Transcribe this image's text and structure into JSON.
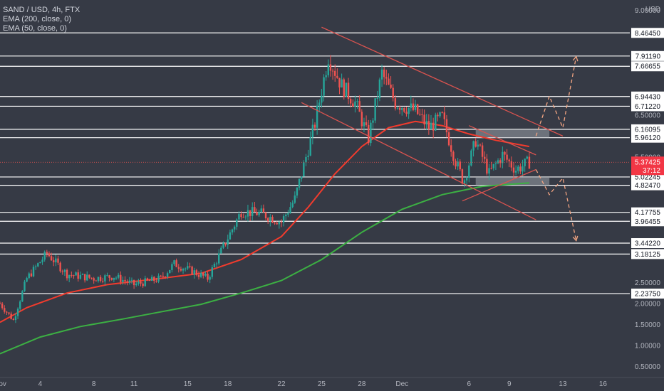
{
  "legend": {
    "symbol": "SAND / USD, 4h, FTX",
    "ema200": "EMA (200, close, 0)",
    "ema50": "EMA (50, close, 0)"
  },
  "currency_label": "USD",
  "colors": {
    "background": "#363a45",
    "up": "#26a69a",
    "down": "#ef5350",
    "ema50": "#f23b2d",
    "ema200": "#3cb043",
    "level": "#ffffff",
    "channel": "#d9534f",
    "projection": "#f4a582",
    "zone": "#9aa0a8"
  },
  "chart_data": {
    "type": "candlestick",
    "title": "SAND / USD, 4h, FTX",
    "ylim": [
      0.25,
      9.25
    ],
    "y_ticks": [
      "9.00000",
      "6.50000",
      "5.50000",
      "2.50000",
      "2.00000",
      "1.50000",
      "1.00000",
      "0.50000"
    ],
    "y_tick_values": [
      9.0,
      6.5,
      5.5,
      2.5,
      2.0,
      1.5,
      1.0,
      0.5
    ],
    "x_ticks": [
      "Nov",
      "4",
      "8",
      "11",
      "15",
      "18",
      "22",
      "25",
      "28",
      "Dec",
      "6",
      "9",
      "13",
      "16"
    ],
    "x_tick_days": [
      0,
      3,
      7,
      10,
      14,
      17,
      21,
      24,
      27,
      30,
      35,
      38,
      42,
      45
    ],
    "xlim_days": [
      0,
      47
    ],
    "levels": [
      "8.46450",
      "7.91190",
      "7.66655",
      "6.94430",
      "6.71220",
      "6.16095",
      "5.96120",
      "5.02245",
      "4.82470",
      "4.17755",
      "3.96455",
      "3.44220",
      "3.18125",
      "2.23750"
    ],
    "level_values": [
      8.4645,
      7.9119,
      7.66655,
      6.9443,
      6.7122,
      6.16095,
      5.9612,
      5.02245,
      4.8247,
      4.17755,
      3.96455,
      3.4422,
      3.18125,
      2.2375
    ],
    "current_price": {
      "value": 5.37425,
      "label": "5.37425",
      "countdown": "37:12"
    },
    "zones": [
      {
        "from_day": 35.5,
        "to_day": 41.0,
        "low": 5.9612,
        "high": 6.16095
      },
      {
        "from_day": 35.5,
        "to_day": 41.0,
        "low": 4.8247,
        "high": 5.02245
      }
    ],
    "price_keypoints": [
      {
        "day": 0,
        "price": 2.0
      },
      {
        "day": 1,
        "price": 1.6
      },
      {
        "day": 2,
        "price": 2.6
      },
      {
        "day": 3.5,
        "price": 3.2
      },
      {
        "day": 5,
        "price": 2.7
      },
      {
        "day": 7,
        "price": 2.6
      },
      {
        "day": 8.5,
        "price": 2.65
      },
      {
        "day": 10,
        "price": 2.45
      },
      {
        "day": 12,
        "price": 2.6
      },
      {
        "day": 13,
        "price": 2.95
      },
      {
        "day": 14.5,
        "price": 2.75
      },
      {
        "day": 15.5,
        "price": 2.6
      },
      {
        "day": 16.5,
        "price": 3.25
      },
      {
        "day": 18,
        "price": 4.2
      },
      {
        "day": 19.5,
        "price": 4.15
      },
      {
        "day": 21,
        "price": 3.95
      },
      {
        "day": 22,
        "price": 4.5
      },
      {
        "day": 23.5,
        "price": 6.3
      },
      {
        "day": 24.5,
        "price": 7.9
      },
      {
        "day": 25.5,
        "price": 7.2
      },
      {
        "day": 26.5,
        "price": 6.8
      },
      {
        "day": 27.5,
        "price": 5.95
      },
      {
        "day": 28.5,
        "price": 7.5
      },
      {
        "day": 29.5,
        "price": 6.8
      },
      {
        "day": 31,
        "price": 6.6
      },
      {
        "day": 32,
        "price": 6.2
      },
      {
        "day": 33,
        "price": 6.45
      },
      {
        "day": 34,
        "price": 5.4
      },
      {
        "day": 34.6,
        "price": 4.9
      },
      {
        "day": 35.5,
        "price": 5.9
      },
      {
        "day": 36.5,
        "price": 5.1
      },
      {
        "day": 37.5,
        "price": 5.55
      },
      {
        "day": 38.5,
        "price": 5.2
      },
      {
        "day": 39.5,
        "price": 5.38
      }
    ],
    "series": [
      {
        "name": "EMA (50, close, 0)",
        "points": [
          {
            "day": 0,
            "price": 1.55
          },
          {
            "day": 2,
            "price": 1.9
          },
          {
            "day": 5,
            "price": 2.25
          },
          {
            "day": 8,
            "price": 2.45
          },
          {
            "day": 12,
            "price": 2.6
          },
          {
            "day": 15,
            "price": 2.72
          },
          {
            "day": 18,
            "price": 3.05
          },
          {
            "day": 21,
            "price": 3.6
          },
          {
            "day": 23,
            "price": 4.3
          },
          {
            "day": 25,
            "price": 5.1
          },
          {
            "day": 27,
            "price": 5.75
          },
          {
            "day": 29,
            "price": 6.2
          },
          {
            "day": 31,
            "price": 6.35
          },
          {
            "day": 33,
            "price": 6.25
          },
          {
            "day": 35,
            "price": 6.05
          },
          {
            "day": 37,
            "price": 5.9
          },
          {
            "day": 39.5,
            "price": 5.75
          }
        ]
      },
      {
        "name": "EMA (200, close, 0)",
        "points": [
          {
            "day": 0,
            "price": 0.8
          },
          {
            "day": 3,
            "price": 1.2
          },
          {
            "day": 6,
            "price": 1.45
          },
          {
            "day": 9,
            "price": 1.62
          },
          {
            "day": 12,
            "price": 1.8
          },
          {
            "day": 15,
            "price": 1.98
          },
          {
            "day": 18,
            "price": 2.25
          },
          {
            "day": 21,
            "price": 2.55
          },
          {
            "day": 24,
            "price": 3.05
          },
          {
            "day": 27,
            "price": 3.7
          },
          {
            "day": 30,
            "price": 4.25
          },
          {
            "day": 33,
            "price": 4.6
          },
          {
            "day": 36,
            "price": 4.8
          },
          {
            "day": 39.5,
            "price": 4.88
          }
        ]
      }
    ],
    "trendlines": [
      {
        "from": {
          "day": 24,
          "price": 8.6
        },
        "to": {
          "day": 42,
          "price": 6.0
        }
      },
      {
        "from": {
          "day": 22.5,
          "price": 6.8
        },
        "to": {
          "day": 40,
          "price": 4.0
        }
      },
      {
        "from": {
          "day": 35,
          "price": 6.25
        },
        "to": {
          "day": 40,
          "price": 5.55
        }
      },
      {
        "from": {
          "day": 34.5,
          "price": 4.45
        },
        "to": {
          "day": 40,
          "price": 5.2
        }
      }
    ],
    "projections": [
      [
        {
          "day": 40,
          "price": 6.0
        },
        {
          "day": 41,
          "price": 6.95
        },
        {
          "day": 42,
          "price": 6.2
        },
        {
          "day": 43,
          "price": 7.9
        }
      ],
      [
        {
          "day": 40,
          "price": 5.2
        },
        {
          "day": 41,
          "price": 4.6
        },
        {
          "day": 42,
          "price": 5.0
        },
        {
          "day": 43,
          "price": 3.5
        }
      ]
    ]
  }
}
